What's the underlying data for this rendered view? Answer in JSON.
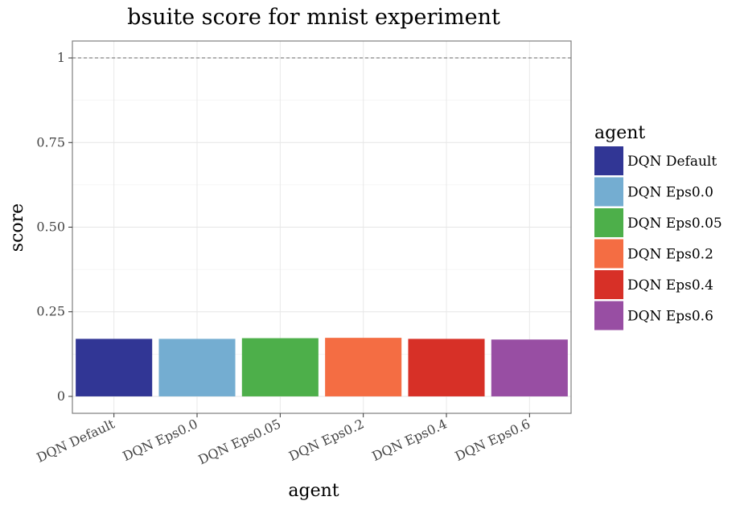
{
  "chart_data": {
    "type": "bar",
    "title": "bsuite score for mnist experiment",
    "xlabel": "agent",
    "ylabel": "score",
    "categories": [
      "DQN Default",
      "DQN Eps0.0",
      "DQN Eps0.05",
      "DQN Eps0.2",
      "DQN Eps0.4",
      "DQN Eps0.6"
    ],
    "values": [
      0.17,
      0.17,
      0.172,
      0.173,
      0.17,
      0.168
    ],
    "colors": [
      "#313695",
      "#74add1",
      "#4daf4a",
      "#f46d43",
      "#d73027",
      "#984ea3"
    ],
    "ylim": [
      -0.05,
      1.05
    ],
    "yticks": [
      0,
      0.25,
      0.5,
      0.75,
      1
    ],
    "ytick_labels": [
      "0",
      "0.25",
      "0.50",
      "0.75",
      "1"
    ],
    "reference_line": {
      "y": 1,
      "style": "dashed"
    },
    "grid": true,
    "legend": {
      "title": "agent",
      "placement": "right",
      "entries": [
        "DQN Default",
        "DQN Eps0.0",
        "DQN Eps0.05",
        "DQN Eps0.2",
        "DQN Eps0.4",
        "DQN Eps0.6"
      ]
    }
  }
}
